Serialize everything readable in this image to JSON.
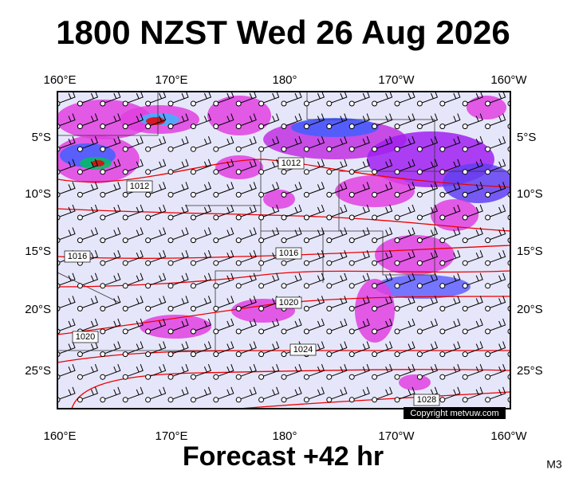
{
  "header": {
    "title": "1800 NZST Wed 26 Aug 2026"
  },
  "map": {
    "longitude_labels": [
      "160°E",
      "170°E",
      "180°",
      "170°W",
      "160°W"
    ],
    "latitude_labels": [
      "5°S",
      "10°S",
      "15°S",
      "20°S",
      "25°S"
    ],
    "isobar_labels": [
      "1012",
      "1012",
      "1016",
      "1016",
      "1020",
      "1020",
      "1024",
      "1028"
    ],
    "copyright": "Copyright metvuw.com"
  },
  "footer": {
    "forecast": "Forecast +42 hr",
    "code": "M3"
  }
}
